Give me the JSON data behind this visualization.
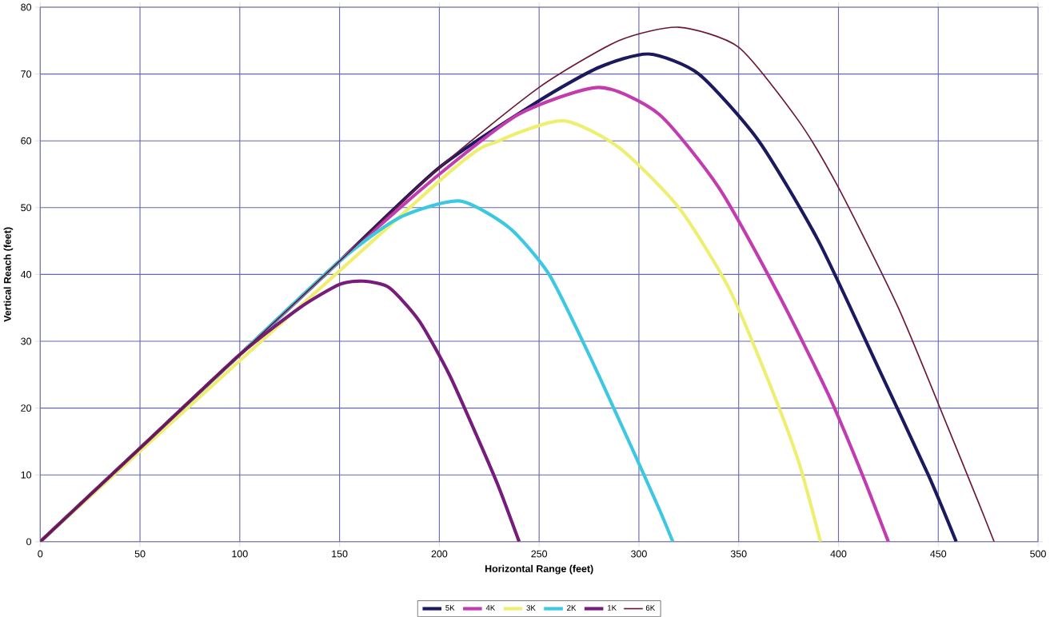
{
  "chart_data": {
    "type": "line",
    "xlabel": "Horizontal Range (feet)",
    "ylabel": "Vertical Reach (feet)",
    "xlim": [
      0,
      500
    ],
    "ylim": [
      0,
      80
    ],
    "xticks": [
      0,
      50,
      100,
      150,
      200,
      250,
      300,
      350,
      400,
      450,
      500
    ],
    "yticks": [
      0,
      10,
      20,
      30,
      40,
      50,
      60,
      70,
      80
    ],
    "grid": true,
    "legend": "bottom",
    "marker": "none",
    "line_style": "solid",
    "series": [
      {
        "name": "5K",
        "color": "#1c1a5e",
        "x": [
          0,
          100,
          150,
          200,
          250,
          280,
          305,
          330,
          360,
          390,
          420,
          445,
          459
        ],
        "values": [
          0,
          28,
          42,
          56,
          66,
          71,
          73,
          70,
          60,
          45,
          26,
          10,
          0
        ]
      },
      {
        "name": "4K",
        "color": "#c23cb0",
        "x": [
          0,
          100,
          150,
          200,
          240,
          280,
          310,
          340,
          370,
          395,
          412,
          425
        ],
        "values": [
          0,
          28,
          42,
          55,
          64,
          68,
          64,
          53,
          37,
          22,
          10,
          0
        ]
      },
      {
        "name": "3K",
        "color": "#eeee70",
        "x": [
          0,
          200,
          230,
          262,
          290,
          320,
          345,
          365,
          380,
          391
        ],
        "values": [
          0,
          54,
          60,
          63,
          59,
          50,
          38,
          24,
          12,
          0
        ]
      },
      {
        "name": "2K",
        "color": "#3cc8e0",
        "x": [
          0,
          50,
          100,
          150,
          180,
          210,
          235,
          255,
          275,
          295,
          310,
          317
        ],
        "values": [
          0,
          14,
          28,
          42,
          48.5,
          51,
          47,
          40,
          28,
          15,
          5,
          0
        ]
      },
      {
        "name": "1K",
        "color": "#761c7a",
        "x": [
          0,
          50,
          100,
          130,
          150,
          162,
          175,
          190,
          205,
          220,
          230,
          240
        ],
        "values": [
          0,
          14,
          28,
          35,
          38.5,
          39,
          38,
          33,
          25,
          15,
          8,
          0
        ]
      },
      {
        "name": "6K",
        "color": "#6b1838",
        "x": [
          0,
          100,
          150,
          200,
          250,
          290,
          320,
          350,
          380,
          400,
          430,
          455,
          470,
          478
        ],
        "values": [
          0,
          28,
          42,
          56,
          68,
          75,
          77,
          74,
          63,
          53,
          35,
          17,
          6,
          0
        ]
      }
    ]
  }
}
